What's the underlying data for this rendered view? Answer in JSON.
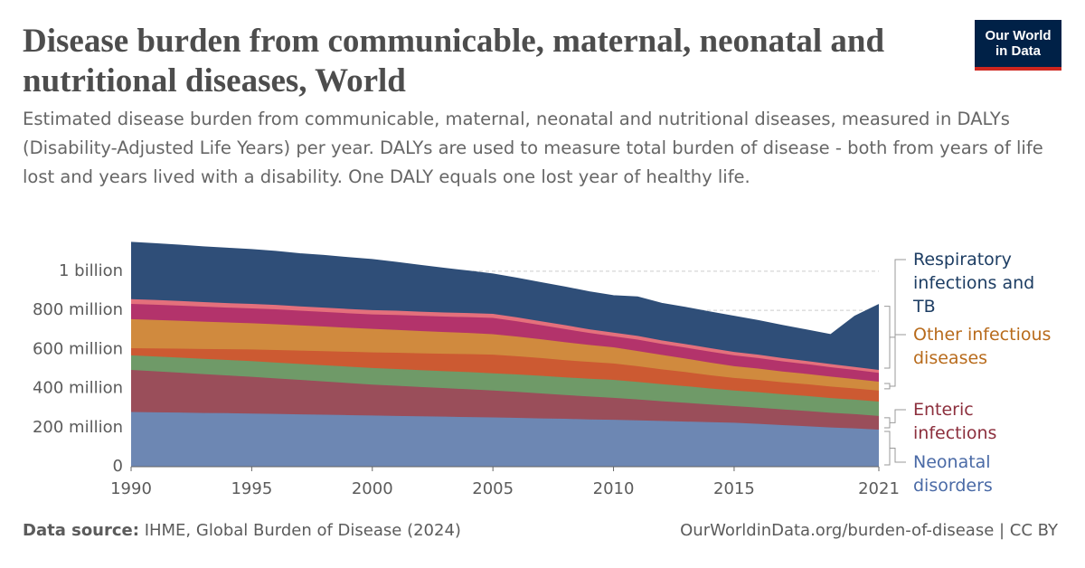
{
  "header": {
    "title": "Disease burden from communicable, maternal, neonatal and nutritional diseases, World",
    "subtitle": "Estimated disease burden from communicable, maternal, neonatal and nutritional diseases, measured in DALYs (Disability-Adjusted Life Years) per year. DALYs are used to measure total burden of disease - both from years of life lost and years lived with a disability. One DALY equals one lost year of healthy life.",
    "logo": "Our World in Data"
  },
  "chart_data": {
    "type": "stacked-area",
    "x": [
      1990,
      1991,
      1992,
      1993,
      1994,
      1995,
      1996,
      1997,
      1998,
      1999,
      2000,
      2001,
      2002,
      2003,
      2004,
      2005,
      2006,
      2007,
      2008,
      2009,
      2010,
      2011,
      2012,
      2013,
      2014,
      2015,
      2016,
      2017,
      2018,
      2019,
      2020,
      2021
    ],
    "xlim": [
      1990,
      2021
    ],
    "xticks": [
      1990,
      1995,
      2000,
      2005,
      2010,
      2015,
      2021
    ],
    "ylim": [
      0,
      1180
    ],
    "yticks": [
      0,
      {
        "value": 200,
        "label": "200 million"
      },
      {
        "value": 400,
        "label": "400 million"
      },
      {
        "value": 600,
        "label": "600 million"
      },
      {
        "value": 800,
        "label": "800 million"
      },
      {
        "value": 1000,
        "label": "1 billion"
      }
    ],
    "grid": true,
    "series": [
      {
        "name": "Neonatal disorders",
        "color": "#6d87b3",
        "label_color": "#4a6aa6",
        "values": [
          280,
          278,
          277,
          275,
          274,
          272,
          270,
          268,
          266,
          264,
          262,
          260,
          258,
          256,
          254,
          252,
          250,
          247,
          245,
          242,
          240,
          237,
          234,
          231,
          228,
          225,
          219,
          213,
          207,
          201,
          196,
          190
        ]
      },
      {
        "name": "Enteric infections",
        "color": "#9a4e5a",
        "label_color": "#8c2f3d",
        "values": [
          215,
          210,
          204,
          199,
          193,
          188,
          182,
          176,
          170,
          164,
          158,
          154,
          150,
          146,
          142,
          138,
          133,
          128,
          122,
          117,
          112,
          107,
          101,
          96,
          90,
          85,
          83,
          80,
          78,
          75,
          73,
          70
        ]
      },
      {
        "color": "#6f9a68",
        "values": [
          75,
          76,
          77,
          78,
          79,
          80,
          81,
          82,
          83,
          84,
          85,
          86,
          86,
          87,
          88,
          88,
          89,
          90,
          90,
          91,
          92,
          90,
          87,
          85,
          82,
          80,
          79,
          78,
          77,
          75,
          74,
          73
        ]
      },
      {
        "color": "#cc5a32",
        "values": [
          36,
          41,
          46,
          50,
          55,
          60,
          64,
          68,
          72,
          76,
          80,
          83,
          86,
          89,
          92,
          95,
          93,
          91,
          88,
          86,
          84,
          80,
          76,
          72,
          68,
          64,
          63,
          61,
          60,
          59,
          57,
          56
        ]
      },
      {
        "name": "Other infectious diseases",
        "color": "#d08a3e",
        "label_color": "#b86b1c",
        "values": [
          149,
          146,
          143,
          140,
          137,
          134,
          132,
          129,
          126,
          123,
          120,
          117,
          114,
          111,
          108,
          105,
          101,
          96,
          92,
          87,
          83,
          78,
          74,
          69,
          65,
          60,
          58,
          55,
          53,
          51,
          48,
          46
        ]
      },
      {
        "color": "#b3336b",
        "values": [
          78,
          78,
          77,
          77,
          76,
          76,
          76,
          75,
          75,
          74,
          74,
          76,
          78,
          79,
          81,
          83,
          78,
          72,
          67,
          61,
          56,
          58,
          56,
          56,
          56,
          56,
          54,
          52,
          50,
          48,
          47,
          45
        ]
      },
      {
        "color": "#e4707c",
        "values": [
          24,
          24,
          24,
          23,
          23,
          23,
          23,
          22,
          22,
          22,
          22,
          22,
          21,
          21,
          21,
          21,
          20,
          20,
          20,
          19,
          19,
          19,
          18,
          18,
          18,
          17,
          17,
          17,
          16,
          16,
          15,
          15
        ]
      },
      {
        "name": "Respiratory infections and TB",
        "color": "#2f4e78",
        "label_color": "#1d3d63",
        "values": [
          291,
          288,
          286,
          283,
          281,
          278,
          274,
          270,
          267,
          263,
          259,
          248,
          237,
          226,
          215,
          204,
          201,
          198,
          195,
          192,
          189,
          200,
          190,
          188,
          185,
          183,
          175,
          167,
          159,
          151,
          260,
          335
        ]
      }
    ]
  },
  "footer": {
    "source_label": "Data source:",
    "source": "IHME, Global Burden of Disease (2024)",
    "url": "OurWorldinData.org/burden-of-disease | CC BY"
  }
}
